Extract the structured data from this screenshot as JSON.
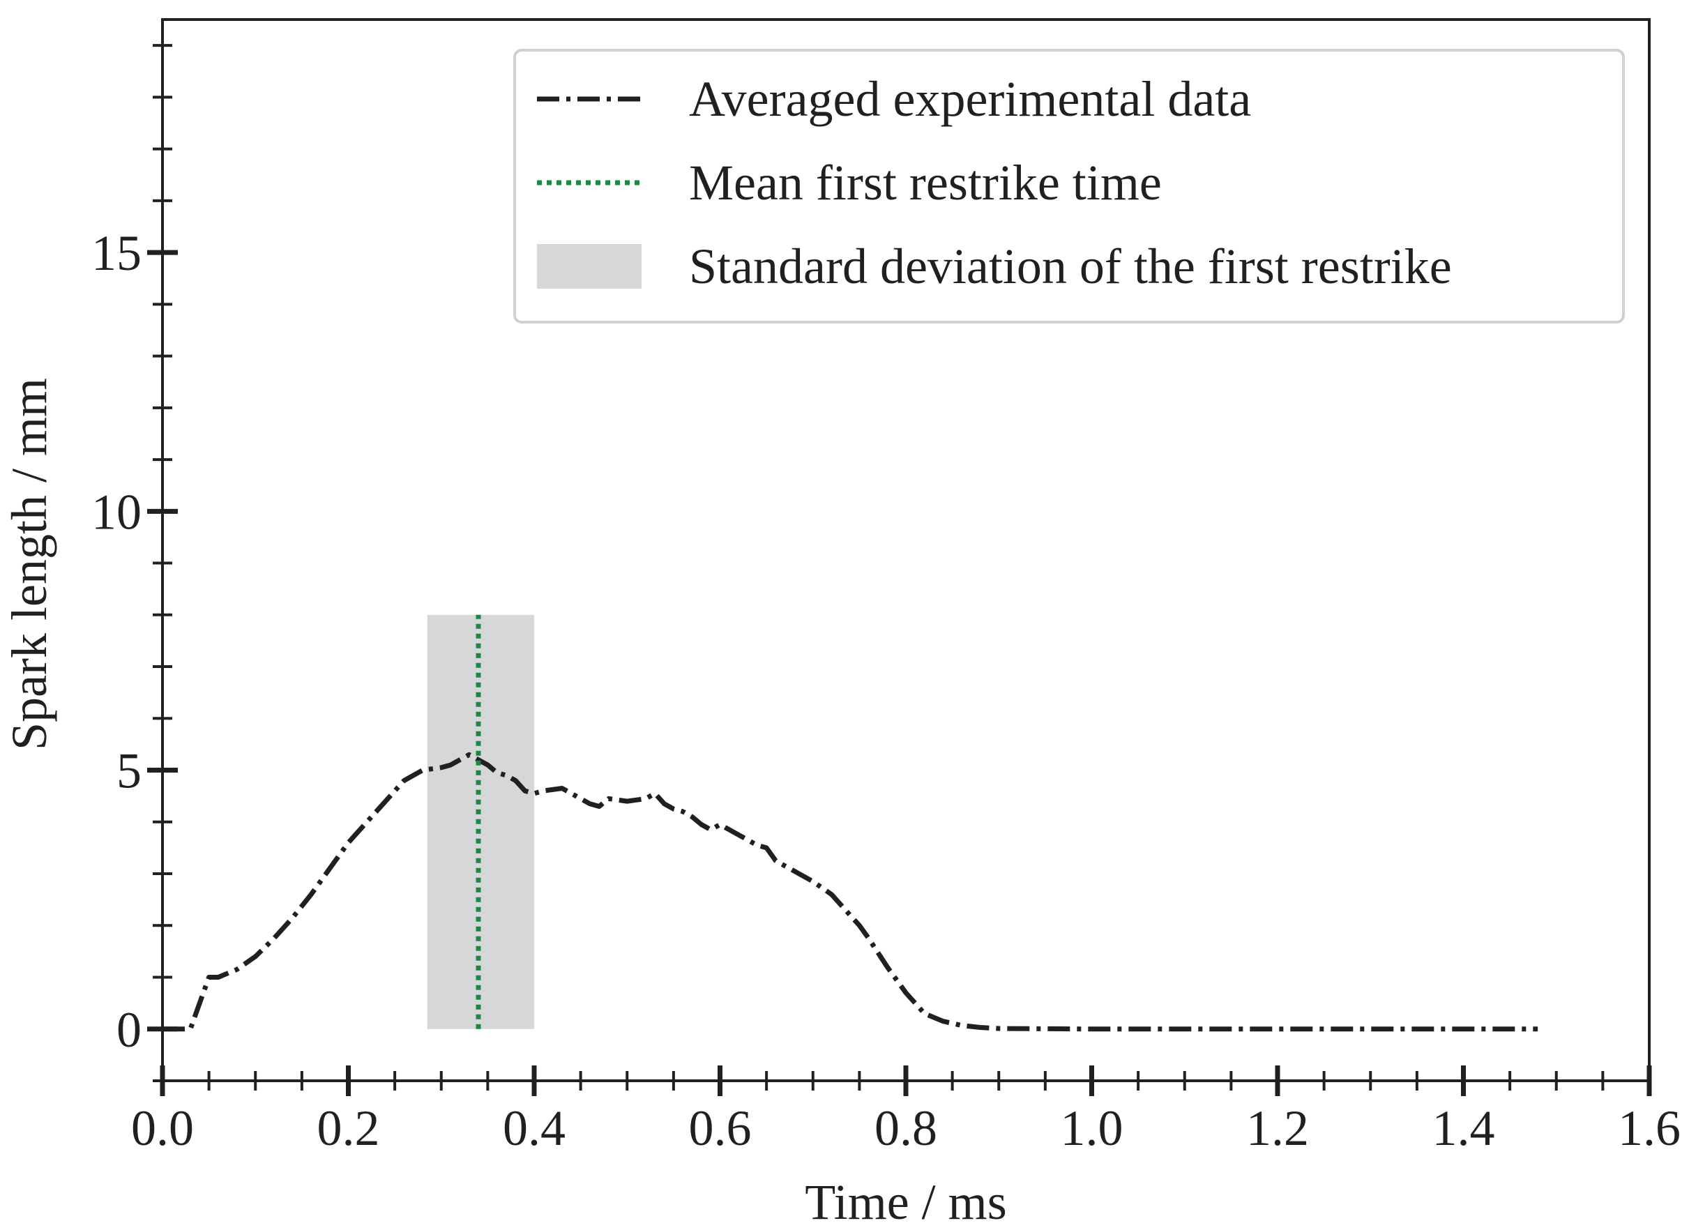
{
  "chart_data": {
    "type": "line",
    "title": "",
    "xlabel": "Time / ms",
    "ylabel": "Spark length / mm",
    "xlim": [
      0.0,
      1.6
    ],
    "ylim": [
      -1,
      19.5
    ],
    "xticks": [
      0.0,
      0.2,
      0.4,
      0.6,
      0.8,
      1.0,
      1.2,
      1.4,
      1.6
    ],
    "xtick_labels": [
      "0.0",
      "0.2",
      "0.4",
      "0.6",
      "0.8",
      "1.0",
      "1.2",
      "1.4",
      "1.6"
    ],
    "yticks": [
      0,
      5,
      10,
      15
    ],
    "ytick_labels": [
      "0",
      "5",
      "10",
      "15"
    ],
    "grid": false,
    "legend_position": "top-right",
    "series": [
      {
        "name": "Averaged experimental data",
        "style": "dash-dot",
        "color": "#231f20",
        "x": [
          0.0,
          0.03,
          0.04,
          0.05,
          0.06,
          0.08,
          0.1,
          0.12,
          0.14,
          0.16,
          0.18,
          0.2,
          0.22,
          0.24,
          0.26,
          0.28,
          0.3,
          0.31,
          0.32,
          0.33,
          0.34,
          0.35,
          0.36,
          0.37,
          0.38,
          0.39,
          0.4,
          0.41,
          0.43,
          0.45,
          0.46,
          0.47,
          0.48,
          0.5,
          0.52,
          0.53,
          0.54,
          0.55,
          0.56,
          0.57,
          0.58,
          0.59,
          0.6,
          0.62,
          0.64,
          0.65,
          0.66,
          0.68,
          0.7,
          0.72,
          0.73,
          0.74,
          0.75,
          0.76,
          0.78,
          0.8,
          0.82,
          0.84,
          0.86,
          0.88,
          0.9,
          1.0,
          1.1,
          1.2,
          1.3,
          1.4,
          1.48
        ],
        "y": [
          0.0,
          0.0,
          0.5,
          1.0,
          1.0,
          1.15,
          1.4,
          1.75,
          2.15,
          2.6,
          3.1,
          3.6,
          4.0,
          4.4,
          4.8,
          5.0,
          5.05,
          5.1,
          5.2,
          5.3,
          5.2,
          5.1,
          4.95,
          4.9,
          4.8,
          4.6,
          4.55,
          4.6,
          4.65,
          4.45,
          4.35,
          4.3,
          4.45,
          4.4,
          4.45,
          4.55,
          4.35,
          4.25,
          4.2,
          4.1,
          3.95,
          3.85,
          3.95,
          3.75,
          3.55,
          3.5,
          3.25,
          3.05,
          2.85,
          2.6,
          2.4,
          2.2,
          2.0,
          1.75,
          1.2,
          0.7,
          0.3,
          0.15,
          0.07,
          0.03,
          0.01,
          0.0,
          0.0,
          0.0,
          0.0,
          0.0,
          0.0
        ]
      },
      {
        "name": "Mean first restrike time",
        "style": "dotted",
        "color": "#1a8a43",
        "x": [
          0.34,
          0.34
        ],
        "y": [
          0,
          8
        ]
      }
    ],
    "shaded_regions": [
      {
        "name": "Standard deviation of the first restrike",
        "x_range": [
          0.285,
          0.4
        ],
        "y_range": [
          0,
          8
        ],
        "color": "#d6d7d8"
      }
    ]
  }
}
